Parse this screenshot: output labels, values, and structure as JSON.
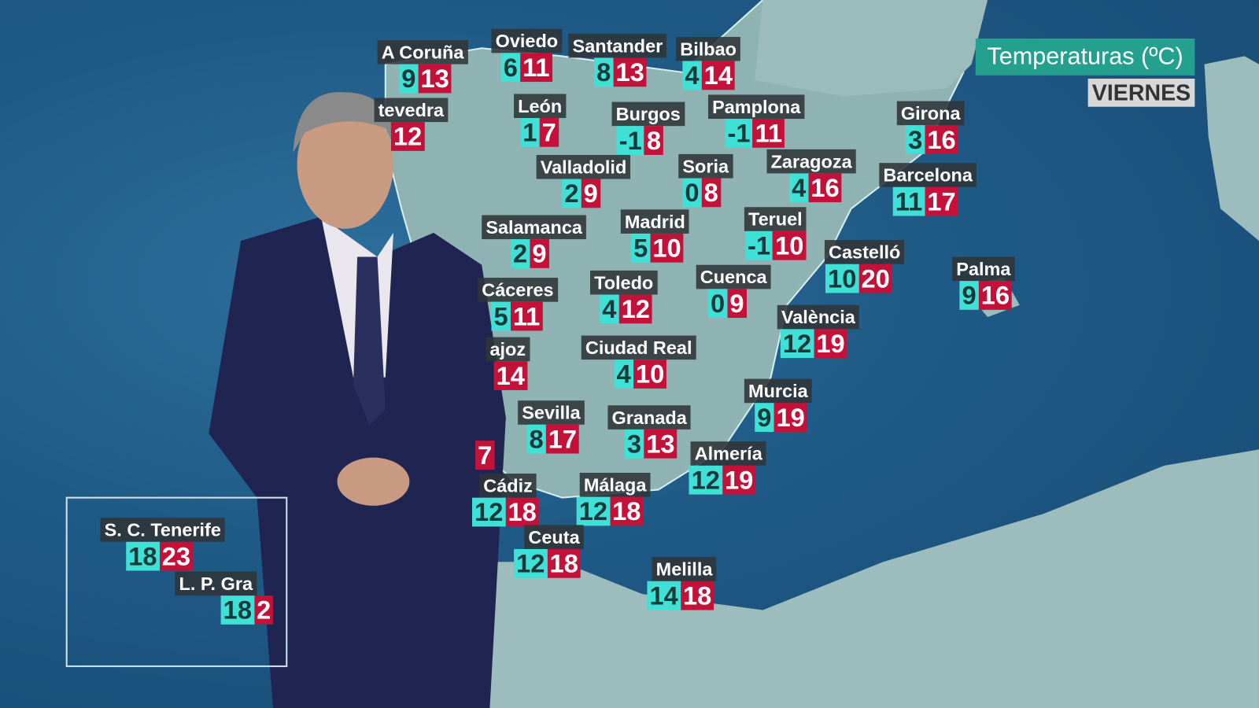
{
  "header": {
    "title": "Temperaturas (ºC)",
    "day": "VIERNES"
  },
  "colors": {
    "min_bg": "#3fe0d6",
    "max_bg": "#c4113a",
    "title_bg": "#23a08e"
  },
  "cities": [
    {
      "name": "A Coruña",
      "min": "9",
      "max": "13"
    },
    {
      "name": "Oviedo",
      "min": "6",
      "max": "11"
    },
    {
      "name": "Santander",
      "min": "8",
      "max": "13"
    },
    {
      "name": "Bilbao",
      "min": "4",
      "max": "14"
    },
    {
      "name": "tevedra",
      "min": "",
      "max": "12"
    },
    {
      "name": "León",
      "min": "1",
      "max": "7"
    },
    {
      "name": "Burgos",
      "min": "-1",
      "max": "8"
    },
    {
      "name": "Pamplona",
      "min": "-1",
      "max": "11"
    },
    {
      "name": "Girona",
      "min": "3",
      "max": "16"
    },
    {
      "name": "Valladolid",
      "min": "2",
      "max": "9"
    },
    {
      "name": "Soria",
      "min": "0",
      "max": "8"
    },
    {
      "name": "Zaragoza",
      "min": "4",
      "max": "16"
    },
    {
      "name": "Barcelona",
      "min": "11",
      "max": "17"
    },
    {
      "name": "Salamanca",
      "min": "2",
      "max": "9"
    },
    {
      "name": "Madrid",
      "min": "5",
      "max": "10"
    },
    {
      "name": "Teruel",
      "min": "-1",
      "max": "10"
    },
    {
      "name": "Castelló",
      "min": "10",
      "max": "20"
    },
    {
      "name": "Palma",
      "min": "9",
      "max": "16"
    },
    {
      "name": "Cáceres",
      "min": "5",
      "max": "11"
    },
    {
      "name": "Toledo",
      "min": "4",
      "max": "12"
    },
    {
      "name": "Cuenca",
      "min": "0",
      "max": "9"
    },
    {
      "name": "València",
      "min": "12",
      "max": "19"
    },
    {
      "name": "ajoz",
      "min": "",
      "max": "14"
    },
    {
      "name": "Ciudad Real",
      "min": "4",
      "max": "10"
    },
    {
      "name": "Murcia",
      "min": "9",
      "max": "19"
    },
    {
      "name": "Sevilla",
      "min": "8",
      "max": "17"
    },
    {
      "name": "Granada",
      "min": "3",
      "max": "13"
    },
    {
      "name": "",
      "min": "",
      "max": "7"
    },
    {
      "name": "Almería",
      "min": "12",
      "max": "19"
    },
    {
      "name": "Cádiz",
      "min": "12",
      "max": "18"
    },
    {
      "name": "Málaga",
      "min": "12",
      "max": "18"
    },
    {
      "name": "Ceuta",
      "min": "12",
      "max": "18"
    },
    {
      "name": "Melilla",
      "min": "14",
      "max": "18"
    },
    {
      "name": "S. C. Tenerife",
      "min": "18",
      "max": "23"
    },
    {
      "name": "L. P. Gra",
      "min": "18",
      "max": "2"
    }
  ]
}
